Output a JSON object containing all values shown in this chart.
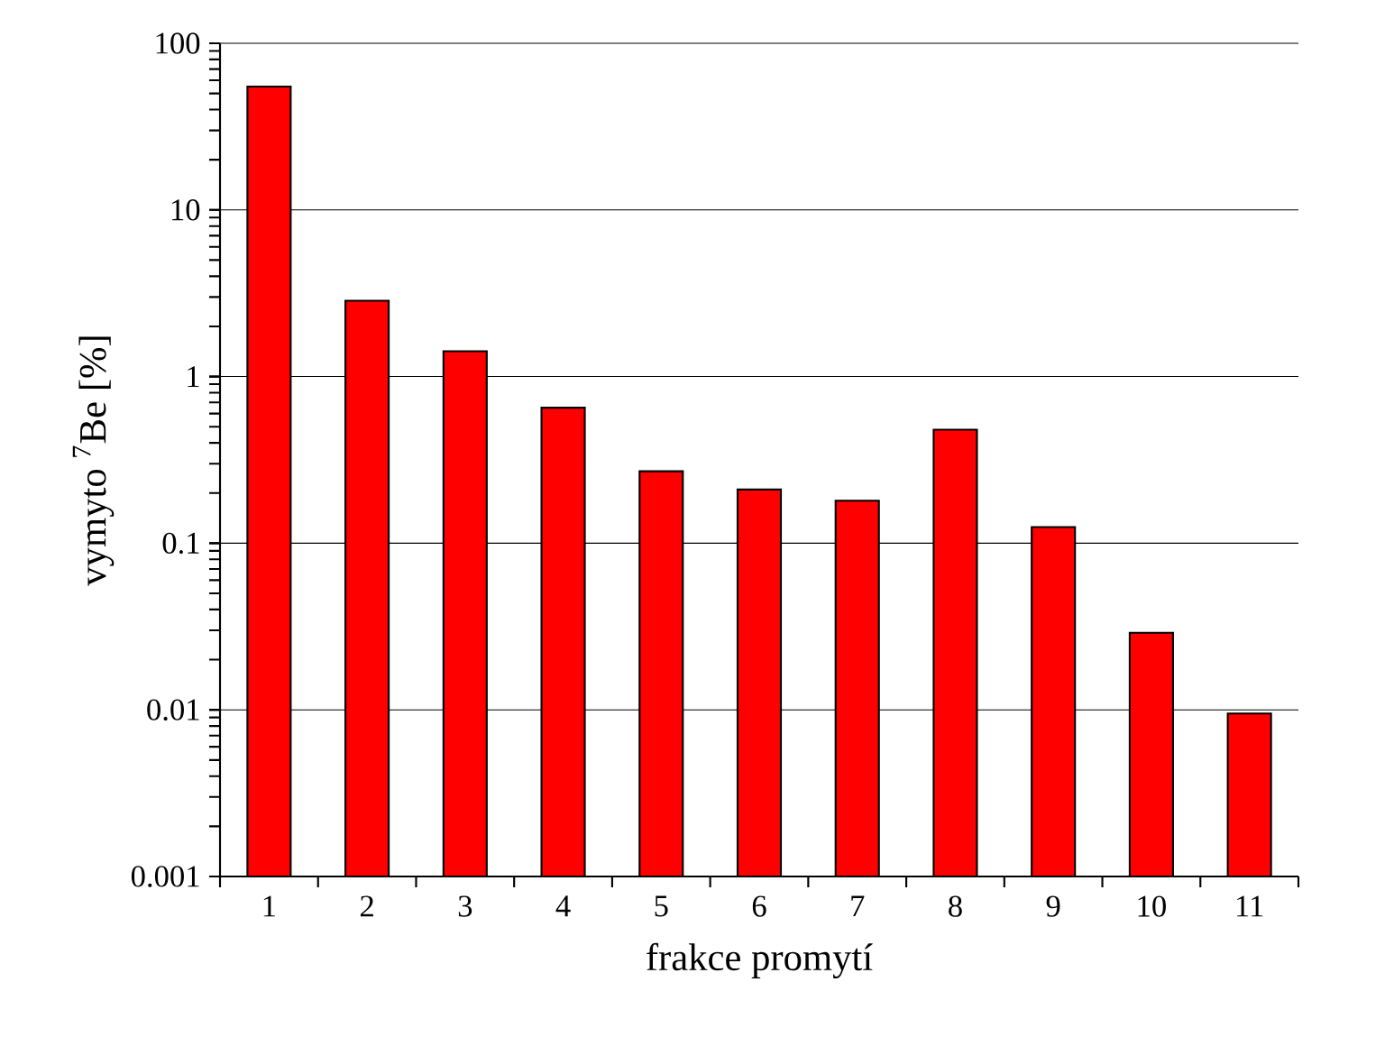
{
  "chart_data": {
    "type": "bar",
    "xlabel": "frakce promytí",
    "ylabel": "vymyto $^{7}$Be [%]",
    "categories": [
      "1",
      "2",
      "3",
      "4",
      "5",
      "6",
      "7",
      "8",
      "9",
      "10",
      "11"
    ],
    "values": [
      55,
      2.85,
      1.42,
      0.65,
      0.27,
      0.21,
      0.18,
      0.48,
      0.125,
      0.029,
      0.0095
    ],
    "color": "#ff0000",
    "log": "y",
    "ylim": [
      0.001,
      100
    ],
    "yticks": [
      0.001,
      0.01,
      0.1,
      1,
      10,
      100
    ],
    "grid": "y"
  }
}
